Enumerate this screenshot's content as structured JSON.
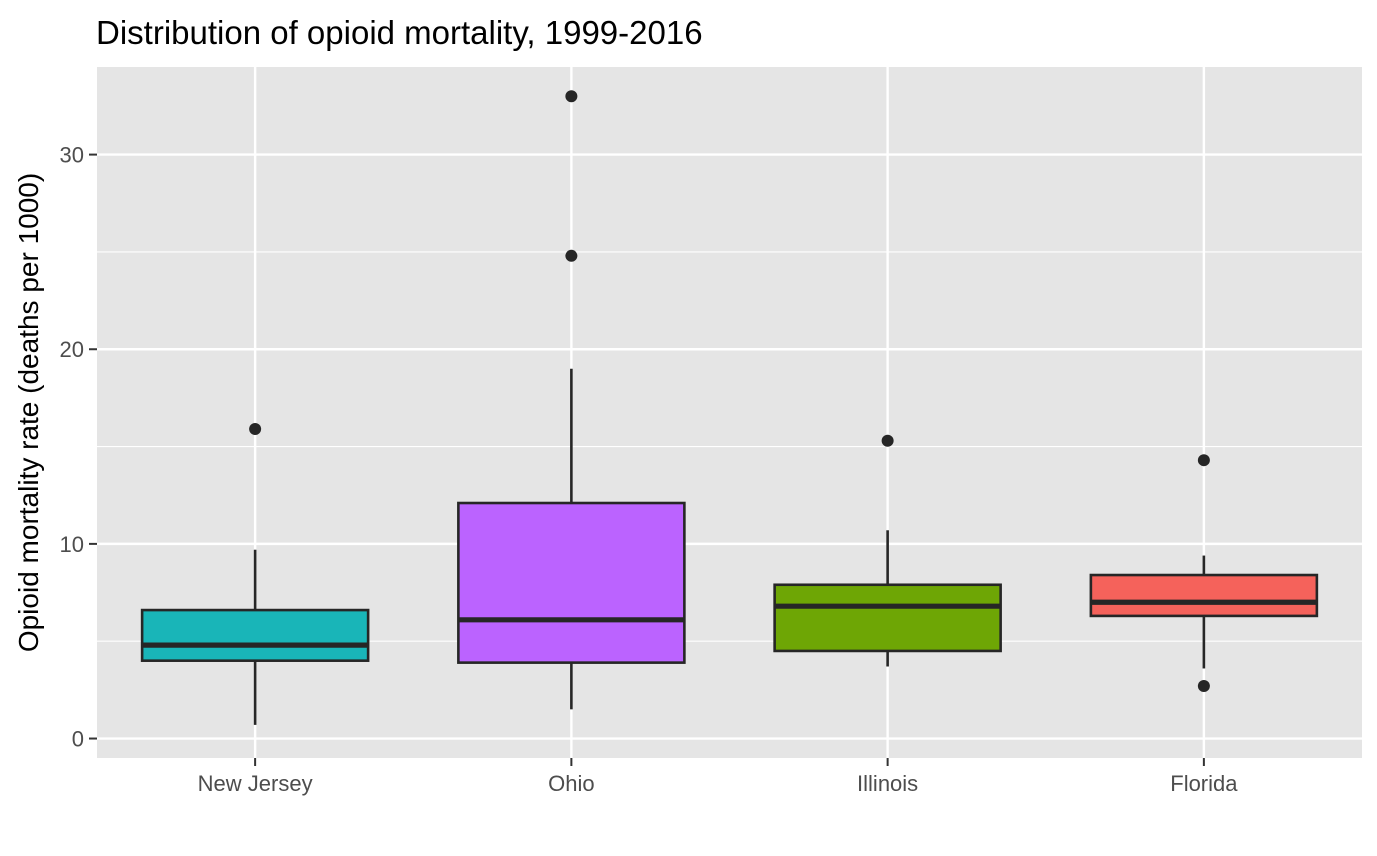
{
  "chart_data": {
    "type": "boxplot",
    "title": "Distribution of opioid mortality, 1999-2016",
    "xlabel": "",
    "ylabel": "Opioid mortality rate (deaths per 1000)",
    "ylim": [
      -1.0,
      34.5
    ],
    "yticks": [
      0,
      10,
      20,
      30
    ],
    "ytick_labels": [
      "0",
      "10",
      "20",
      "30"
    ],
    "grid": true,
    "legend": "none",
    "panel_background": "#e5e5e5",
    "gridline_color": "#ffffff",
    "box_outline_color": "#262626",
    "categories": [
      "New Jersey",
      "Ohio",
      "Illinois",
      "Florida"
    ],
    "boxes": [
      {
        "category": "New Jersey",
        "color": "#19b5b8",
        "whisker_low": 0.7,
        "q1": 4.0,
        "median": 4.8,
        "q3": 6.6,
        "whisker_high": 9.7,
        "outliers": [
          15.9
        ]
      },
      {
        "category": "Ohio",
        "color": "#bb63ff",
        "whisker_low": 1.5,
        "q1": 3.9,
        "median": 6.1,
        "q3": 12.1,
        "whisker_high": 19.0,
        "outliers": [
          24.8,
          33.0
        ]
      },
      {
        "category": "Illinois",
        "color": "#6ea605",
        "whisker_low": 3.7,
        "q1": 4.5,
        "median": 6.8,
        "q3": 7.9,
        "whisker_high": 10.7,
        "outliers": [
          15.3
        ]
      },
      {
        "category": "Florida",
        "color": "#f5625b",
        "whisker_low": 3.6,
        "q1": 6.3,
        "median": 7.0,
        "q3": 8.4,
        "whisker_high": 9.4,
        "outliers": [
          2.7,
          14.3
        ]
      }
    ]
  }
}
